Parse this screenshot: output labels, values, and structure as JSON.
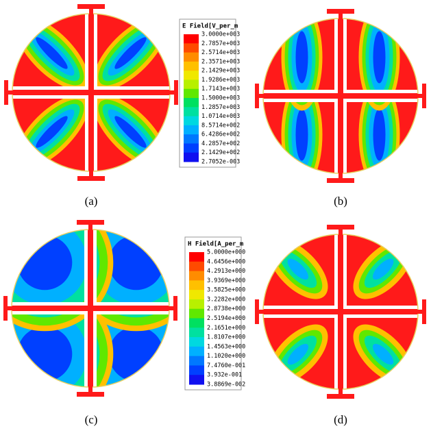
{
  "figure": {
    "panels": [
      {
        "label": "(a)"
      },
      {
        "label": "(b)"
      },
      {
        "label": "(c)"
      },
      {
        "label": "(d)"
      }
    ],
    "legends": [
      {
        "title": "E Field[V_per_m",
        "ticks": [
          "3.0000e+003",
          "2.7857e+003",
          "2.5714e+003",
          "2.3571e+003",
          "2.1429e+003",
          "1.9286e+003",
          "1.7143e+003",
          "1.5000e+003",
          "1.2857e+003",
          "1.0714e+003",
          "8.5714e+002",
          "6.4286e+002",
          "4.2857e+002",
          "2.1429e+002",
          "2.7052e-003"
        ]
      },
      {
        "title": "H Field[A_per_m",
        "ticks": [
          "5.0000e+000",
          "4.6456e+000",
          "4.2913e+000",
          "3.9369e+000",
          "3.5825e+000",
          "3.2282e+000",
          "2.8738e+000",
          "2.5194e+000",
          "2.1651e+000",
          "1.8107e+000",
          "1.4563e+000",
          "1.1020e+000",
          "7.4760e-001",
          "3.932e-001",
          "3.8869e-002"
        ]
      }
    ]
  }
}
